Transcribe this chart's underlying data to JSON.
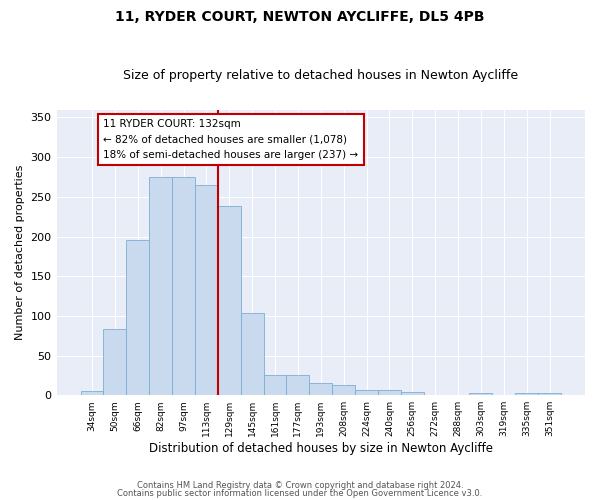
{
  "title": "11, RYDER COURT, NEWTON AYCLIFFE, DL5 4PB",
  "subtitle": "Size of property relative to detached houses in Newton Aycliffe",
  "xlabel": "Distribution of detached houses by size in Newton Aycliffe",
  "ylabel": "Number of detached properties",
  "categories": [
    "34sqm",
    "50sqm",
    "66sqm",
    "82sqm",
    "97sqm",
    "113sqm",
    "129sqm",
    "145sqm",
    "161sqm",
    "177sqm",
    "193sqm",
    "208sqm",
    "224sqm",
    "240sqm",
    "256sqm",
    "272sqm",
    "288sqm",
    "303sqm",
    "319sqm",
    "335sqm",
    "351sqm"
  ],
  "values": [
    5,
    84,
    196,
    275,
    275,
    265,
    238,
    104,
    26,
    25,
    16,
    13,
    7,
    7,
    4,
    0,
    0,
    3,
    0,
    3,
    3
  ],
  "bar_color": "#c9d9ee",
  "bar_edge_color": "#7bafd4",
  "vline_color": "#c00000",
  "vline_x": 5.5,
  "annotation_text": "11 RYDER COURT: 132sqm\n← 82% of detached houses are smaller (1,078)\n18% of semi-detached houses are larger (237) →",
  "annotation_box_color": "#c00000",
  "annotation_box_fill": "#ffffff",
  "ylim": [
    0,
    360
  ],
  "yticks": [
    0,
    50,
    100,
    150,
    200,
    250,
    300,
    350
  ],
  "background_color": "#e8edf8",
  "grid_color": "#ffffff",
  "footer_line1": "Contains HM Land Registry data © Crown copyright and database right 2024.",
  "footer_line2": "Contains public sector information licensed under the Open Government Licence v3.0.",
  "title_fontsize": 10,
  "subtitle_fontsize": 9
}
